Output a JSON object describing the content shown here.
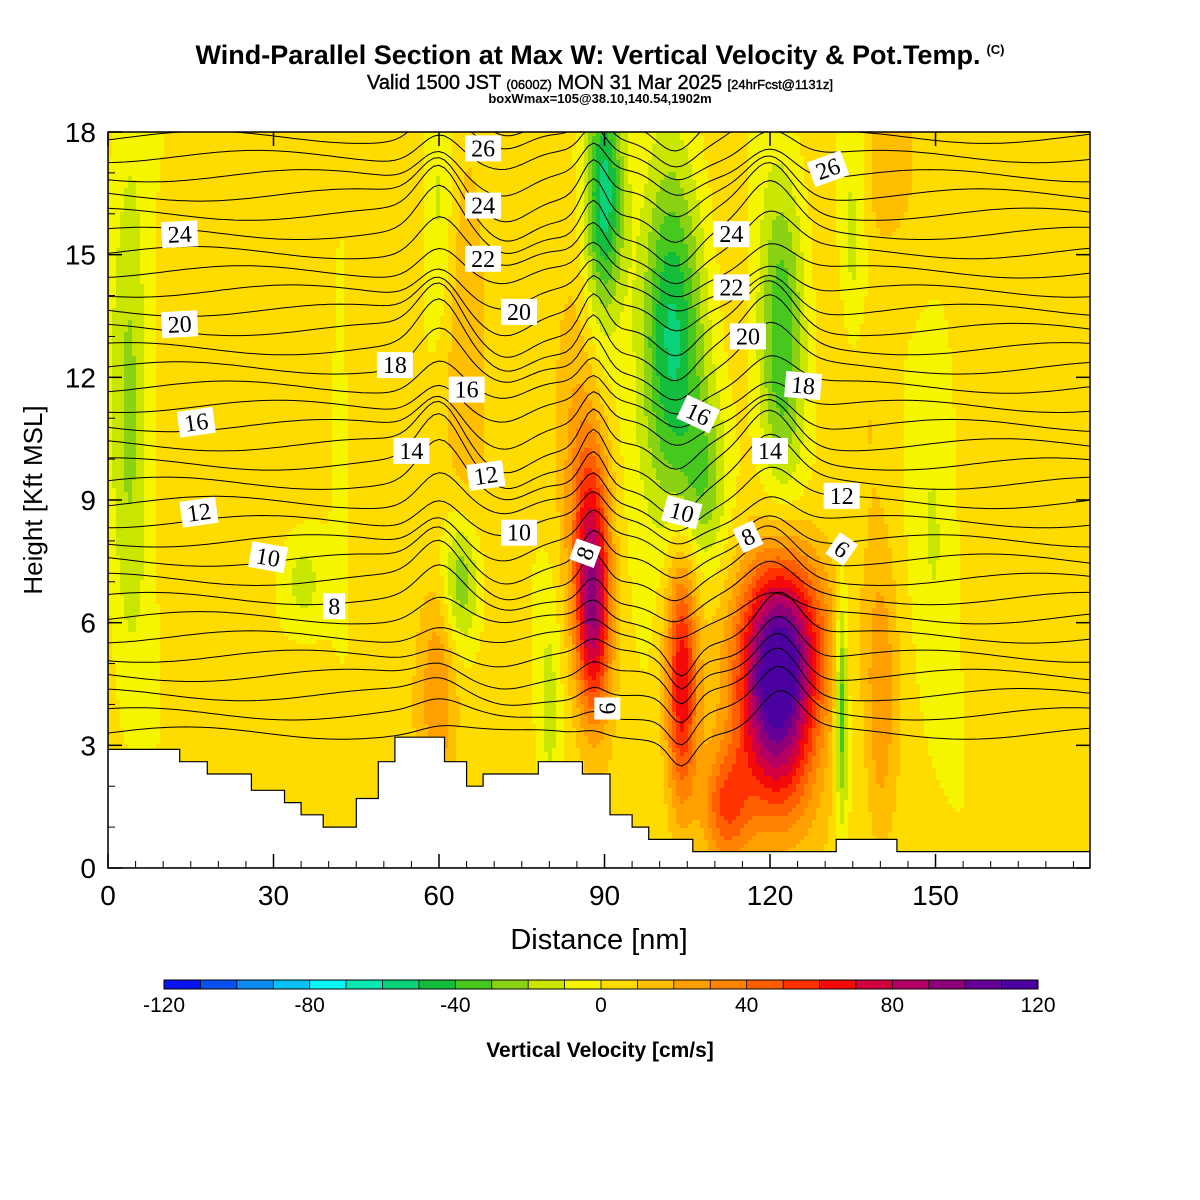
{
  "header": {
    "title": "Wind-Parallel Section at Max W: Vertical Velocity & Pot.Temp.",
    "copyright": "(C)",
    "subtitle_main": "Valid 1500 JST",
    "subtitle_utc": "(0600Z)",
    "subtitle_date": "MON 31 Mar 2025",
    "subtitle_fcst": "[24hrFcst@1131z]",
    "box_info": "boxWmax=105@38.10,140.54,1902m"
  },
  "chart_data": {
    "type": "heatmap",
    "xlabel": "Distance [nm]",
    "ylabel": "Height [Kft MSL]",
    "xlim": [
      0,
      178
    ],
    "ylim": [
      0,
      18
    ],
    "x_ticks": [
      0,
      30,
      60,
      90,
      120,
      150
    ],
    "y_ticks": [
      0,
      3,
      6,
      9,
      12,
      15,
      18
    ],
    "colorbar": {
      "label": "Vertical Velocity [cm/s]",
      "min": -120,
      "max": 120,
      "step": 10,
      "tick_values": [
        -120,
        -80,
        -40,
        0,
        40,
        80,
        120
      ],
      "colors": [
        "#0a14f0",
        "#0a50f0",
        "#0a8cf0",
        "#0ac0f5",
        "#0af5f5",
        "#0ae6b4",
        "#0ad278",
        "#14be3c",
        "#46c81e",
        "#8cd214",
        "#c8e600",
        "#f5f500",
        "#ffdc00",
        "#ffbe00",
        "#ffa000",
        "#ff8200",
        "#ff5f00",
        "#ff3200",
        "#f50a0a",
        "#d2003c",
        "#b40064",
        "#8c0078",
        "#640096",
        "#4b00a0"
      ]
    },
    "theta_contour_labels": [
      "6",
      "8",
      "10",
      "12",
      "14",
      "16",
      "18",
      "20",
      "22",
      "24",
      "26"
    ],
    "theta_labels": [
      {
        "text": "24",
        "x": 13,
        "y": 15.5,
        "rot": -3
      },
      {
        "text": "20",
        "x": 13,
        "y": 13.3,
        "rot": -3
      },
      {
        "text": "16",
        "x": 16,
        "y": 10.9,
        "rot": -8
      },
      {
        "text": "12",
        "x": 16.5,
        "y": 8.7,
        "rot": -8
      },
      {
        "text": "10",
        "x": 29,
        "y": 7.6,
        "rot": 10
      },
      {
        "text": "8",
        "x": 41,
        "y": 6.4,
        "rot": 0
      },
      {
        "text": "18",
        "x": 52,
        "y": 12.3,
        "rot": 0
      },
      {
        "text": "14",
        "x": 55,
        "y": 10.2,
        "rot": 0
      },
      {
        "text": "26",
        "x": 68,
        "y": 17.6,
        "rot": 0
      },
      {
        "text": "24",
        "x": 68,
        "y": 16.2,
        "rot": 0
      },
      {
        "text": "22",
        "x": 68,
        "y": 14.9,
        "rot": 0
      },
      {
        "text": "16",
        "x": 65,
        "y": 11.7,
        "rot": 0
      },
      {
        "text": "12",
        "x": 68.5,
        "y": 9.6,
        "rot": -8
      },
      {
        "text": "20",
        "x": 74.5,
        "y": 13.6,
        "rot": 0
      },
      {
        "text": "10",
        "x": 74.5,
        "y": 8.2,
        "rot": 0
      },
      {
        "text": "8",
        "x": 86.5,
        "y": 7.7,
        "rot": -70
      },
      {
        "text": "6",
        "x": 90.5,
        "y": 3.9,
        "rot": -90
      },
      {
        "text": "24",
        "x": 113,
        "y": 15.5,
        "rot": 0
      },
      {
        "text": "22",
        "x": 113,
        "y": 14.2,
        "rot": 0
      },
      {
        "text": "20",
        "x": 116,
        "y": 13.0,
        "rot": 0
      },
      {
        "text": "16",
        "x": 107,
        "y": 11.1,
        "rot": 25
      },
      {
        "text": "10",
        "x": 104,
        "y": 8.7,
        "rot": 15
      },
      {
        "text": "18",
        "x": 126,
        "y": 11.8,
        "rot": 5
      },
      {
        "text": "14",
        "x": 120,
        "y": 10.2,
        "rot": 0
      },
      {
        "text": "8",
        "x": 116,
        "y": 8.1,
        "rot": -25
      },
      {
        "text": "26",
        "x": 130.5,
        "y": 17.1,
        "rot": -20
      },
      {
        "text": "12",
        "x": 133,
        "y": 9.1,
        "rot": 0
      },
      {
        "text": "6",
        "x": 133,
        "y": 7.8,
        "rot": 35
      }
    ],
    "w_features": [
      {
        "x": 121,
        "y": 4.0,
        "sx": 5,
        "sy": 2.0,
        "w": 100
      },
      {
        "x": 123,
        "y": 5.8,
        "sx": 6,
        "sy": 1.5,
        "w": 45
      },
      {
        "x": 104,
        "y": 4.5,
        "sx": 2.0,
        "sy": 2.2,
        "w": 65
      },
      {
        "x": 88,
        "y": 6.2,
        "sx": 2.2,
        "sy": 1.8,
        "w": 75
      },
      {
        "x": 87.5,
        "y": 8.8,
        "sx": 2.5,
        "sy": 1.8,
        "w": 35
      },
      {
        "x": 60,
        "y": 4.5,
        "sx": 2.5,
        "sy": 2.0,
        "w": 28
      },
      {
        "x": 140,
        "y": 4.0,
        "sx": 2.0,
        "sy": 2.5,
        "w": 25
      },
      {
        "x": 112,
        "y": 1.5,
        "sx": 3.0,
        "sy": 1.0,
        "w": 40
      },
      {
        "x": 65,
        "y": 13.5,
        "sx": 3.0,
        "sy": 4.0,
        "w": 15
      },
      {
        "x": 140,
        "y": 17.0,
        "sx": 4.0,
        "sy": 1.5,
        "w": 15
      },
      {
        "x": 135,
        "y": 12.0,
        "sx": 4.0,
        "sy": 2.0,
        "w": 12
      },
      {
        "x": 85,
        "y": 11.5,
        "sx": 2.5,
        "sy": 4.0,
        "w": 12
      },
      {
        "x": 35,
        "y": 12.0,
        "sx": 4.0,
        "sy": 3.0,
        "w": 8
      },
      {
        "x": 102,
        "y": 12.8,
        "sx": 4.0,
        "sy": 3.0,
        "w": -55
      },
      {
        "x": 90,
        "y": 16.5,
        "sx": 2.5,
        "sy": 2.0,
        "w": -60
      },
      {
        "x": 122,
        "y": 12.8,
        "sx": 3.0,
        "sy": 2.8,
        "w": -40
      },
      {
        "x": 108,
        "y": 9.5,
        "sx": 3.0,
        "sy": 1.5,
        "w": -25
      },
      {
        "x": 133,
        "y": 4.0,
        "sx": 0.8,
        "sy": 2.0,
        "w": -45
      },
      {
        "x": 64,
        "y": 7.0,
        "sx": 2.5,
        "sy": 1.2,
        "w": -35
      },
      {
        "x": 35,
        "y": 7.0,
        "sx": 3.0,
        "sy": 1.0,
        "w": -20
      },
      {
        "x": 4,
        "y": 12.0,
        "sx": 2.5,
        "sy": 5.0,
        "w": -25
      },
      {
        "x": 60,
        "y": 16.0,
        "sx": 2.0,
        "sy": 2.5,
        "w": -18
      },
      {
        "x": 135,
        "y": 15.0,
        "sx": 2.0,
        "sy": 3.0,
        "w": -22
      },
      {
        "x": 150,
        "y": 9.0,
        "sx": 3.0,
        "sy": 4.0,
        "w": -12
      },
      {
        "x": 80,
        "y": 4.0,
        "sx": 1.5,
        "sy": 2.0,
        "w": -15
      },
      {
        "x": 42,
        "y": 12.0,
        "sx": 1.0,
        "sy": 3.0,
        "w": -12
      }
    ],
    "terrain": [
      [
        0,
        2.9
      ],
      [
        13,
        2.9
      ],
      [
        13,
        2.6
      ],
      [
        18,
        2.6
      ],
      [
        18,
        2.3
      ],
      [
        26,
        2.3
      ],
      [
        26,
        1.9
      ],
      [
        32,
        1.9
      ],
      [
        32,
        1.6
      ],
      [
        35,
        1.6
      ],
      [
        35,
        1.3
      ],
      [
        39,
        1.3
      ],
      [
        39,
        1.0
      ],
      [
        45,
        1.0
      ],
      [
        45,
        1.7
      ],
      [
        49,
        1.7
      ],
      [
        49,
        2.6
      ],
      [
        52,
        2.6
      ],
      [
        52,
        3.2
      ],
      [
        61,
        3.2
      ],
      [
        61,
        2.6
      ],
      [
        65,
        2.6
      ],
      [
        65,
        2.0
      ],
      [
        68,
        2.0
      ],
      [
        68,
        2.3
      ],
      [
        78,
        2.3
      ],
      [
        78,
        2.6
      ],
      [
        86,
        2.6
      ],
      [
        86,
        2.3
      ],
      [
        91,
        2.3
      ],
      [
        91,
        1.3
      ],
      [
        95,
        1.3
      ],
      [
        95,
        1.0
      ],
      [
        98,
        1.0
      ],
      [
        98,
        0.7
      ],
      [
        106,
        0.7
      ],
      [
        106,
        0.4
      ],
      [
        132,
        0.4
      ],
      [
        132,
        0.7
      ],
      [
        143,
        0.7
      ],
      [
        143,
        0.4
      ],
      [
        178,
        0.4
      ]
    ]
  }
}
